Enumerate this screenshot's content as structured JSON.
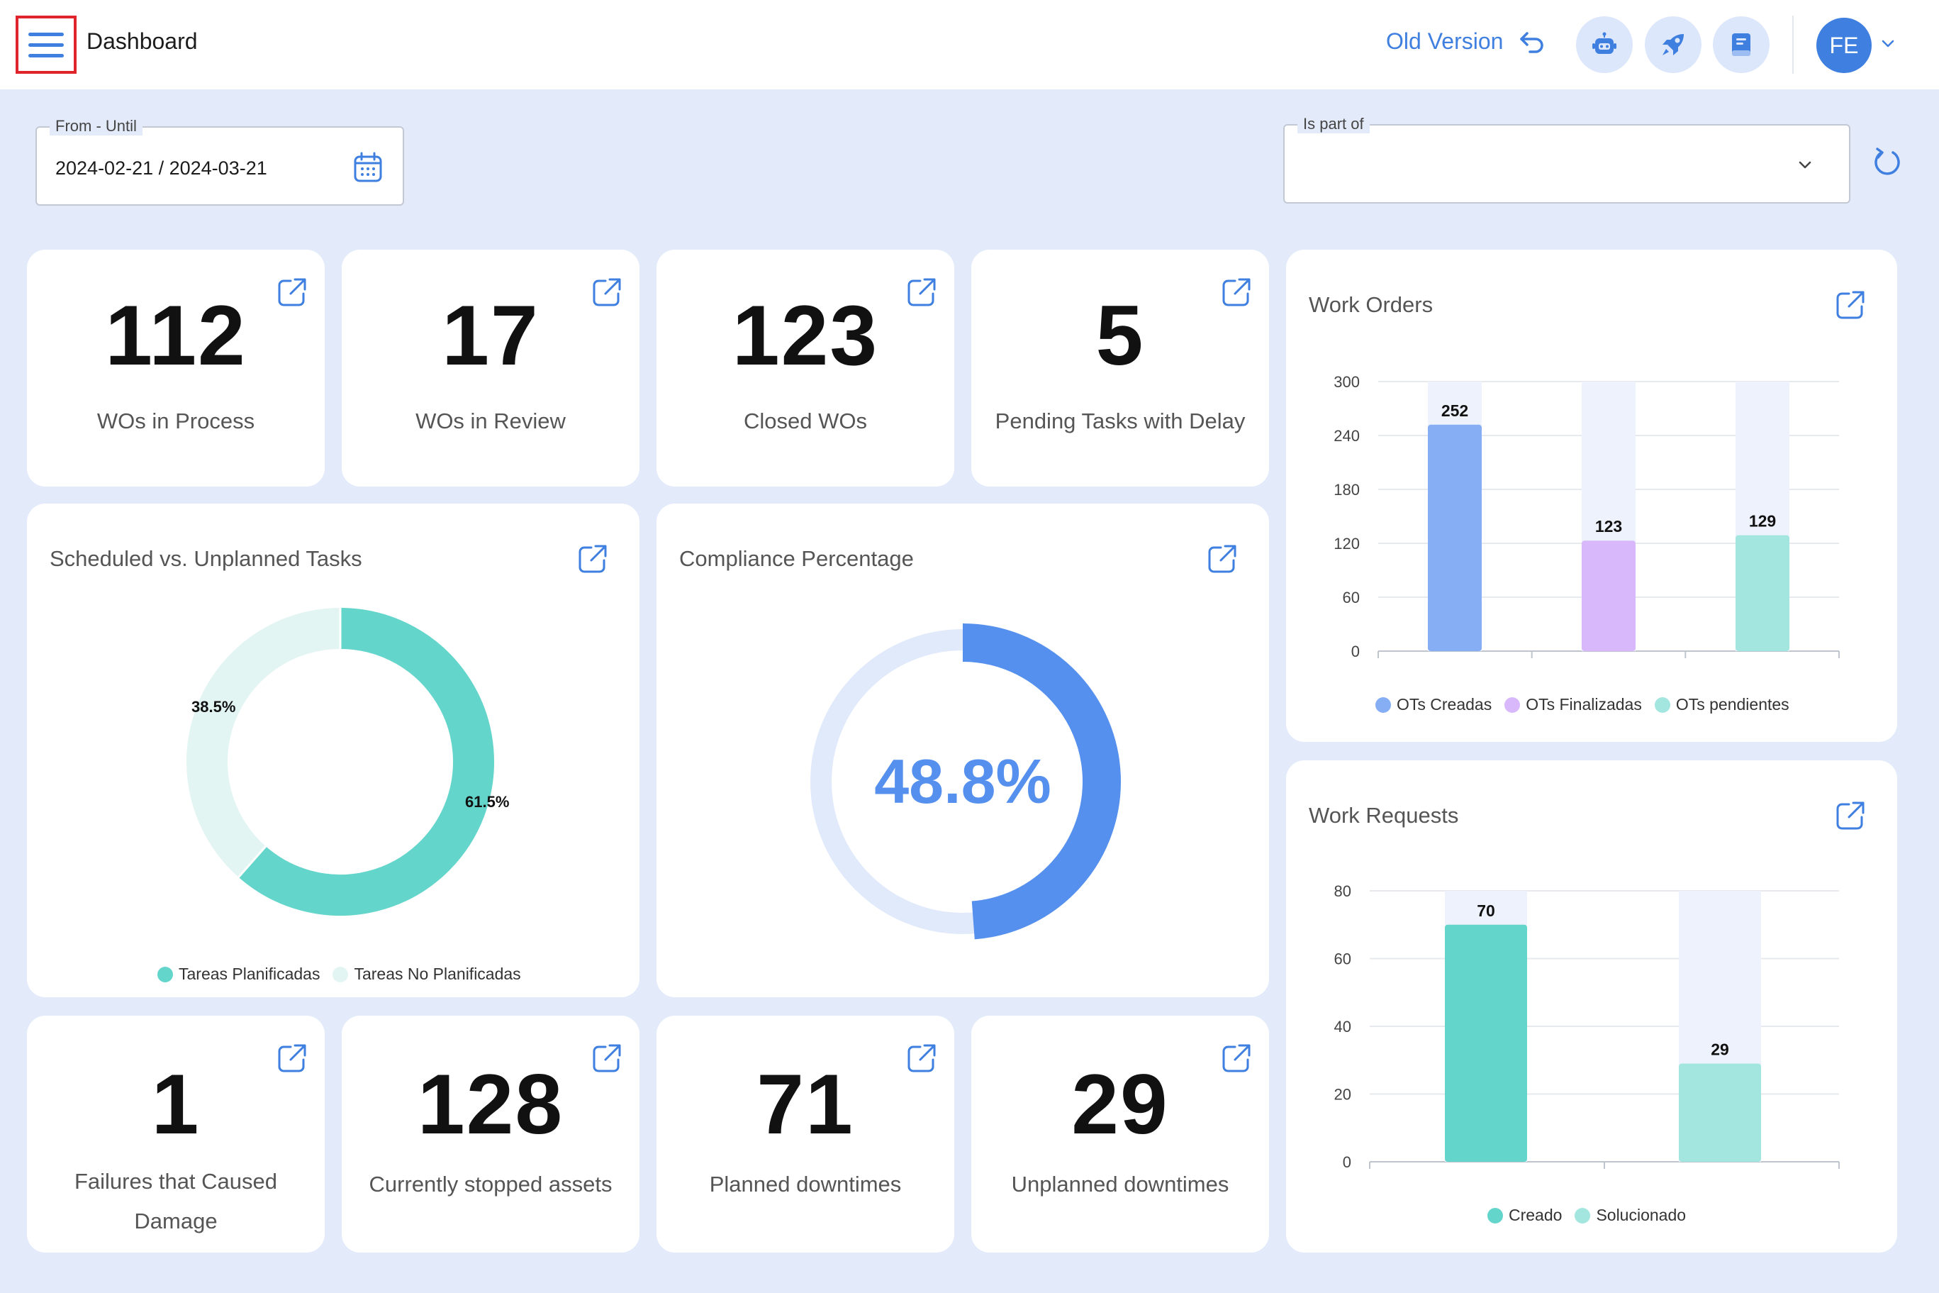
{
  "header": {
    "title": "Dashboard",
    "old_version_label": "Old Version",
    "avatar_initials": "FE"
  },
  "filters": {
    "date_legend": "From - Until",
    "date_value": "2024-02-21 / 2024-03-21",
    "part_of_legend": "Is part of",
    "part_of_value": ""
  },
  "stats": {
    "wos_in_process": {
      "value": "112",
      "label": "WOs in Process"
    },
    "wos_in_review": {
      "value": "17",
      "label": "WOs in Review"
    },
    "closed_wos": {
      "value": "123",
      "label": "Closed WOs"
    },
    "pending_tasks_delay": {
      "value": "5",
      "label": "Pending Tasks with Delay"
    },
    "failures_damage": {
      "value": "1",
      "label": "Failures that Caused Damage"
    },
    "stopped_assets": {
      "value": "128",
      "label": "Currently stopped assets"
    },
    "planned_downtimes": {
      "value": "71",
      "label": "Planned downtimes"
    },
    "unplanned_downtimes": {
      "value": "29",
      "label": "Unplanned downtimes"
    }
  },
  "colors": {
    "accent": "#3f7fe0",
    "teal": "#63d5cb",
    "teal_light": "#a3e6df",
    "teal_pale": "#e3f5f3",
    "blue_bar": "#86aef5",
    "purple_bar": "#d8b8fa",
    "bar_track": "#edf2fc",
    "gauge": "#5590ee",
    "gauge_track": "#e1eafb"
  },
  "chart_data": [
    {
      "type": "pie",
      "title": "Scheduled vs. Unplanned Tasks",
      "labels": [
        "Tareas Planificadas",
        "Tareas No Planificadas"
      ],
      "values": [
        61.5,
        38.5
      ],
      "value_labels": [
        "61.5%",
        "38.5%"
      ],
      "colors": [
        "#63d5cb",
        "#e3f5f3"
      ],
      "legend": "bottom"
    },
    {
      "type": "pie",
      "title": "Compliance Percentage",
      "labels": [
        "Compliance"
      ],
      "values": [
        48.8
      ],
      "value_label": "48.8%",
      "colors": [
        "#5590ee"
      ]
    },
    {
      "type": "bar",
      "title": "Work Orders",
      "categories": [
        "OTs Creadas",
        "OTs Finalizadas",
        "OTs pendientes"
      ],
      "values": [
        252,
        123,
        129
      ],
      "value_labels": [
        "252",
        "123",
        "129"
      ],
      "colors": [
        "#86aef5",
        "#d8b8fa",
        "#a3e6df"
      ],
      "ylim": [
        0,
        300
      ],
      "yticks": [
        "0",
        "60",
        "120",
        "180",
        "240",
        "300"
      ],
      "legend": "bottom"
    },
    {
      "type": "bar",
      "title": "Work Requests",
      "categories": [
        "Creado",
        "Solucionado"
      ],
      "values": [
        70,
        29
      ],
      "value_labels": [
        "70",
        "29"
      ],
      "colors": [
        "#63d5cb",
        "#a3e6df"
      ],
      "ylim": [
        0,
        80
      ],
      "yticks": [
        "0",
        "20",
        "40",
        "60",
        "80"
      ],
      "legend": "bottom"
    }
  ]
}
